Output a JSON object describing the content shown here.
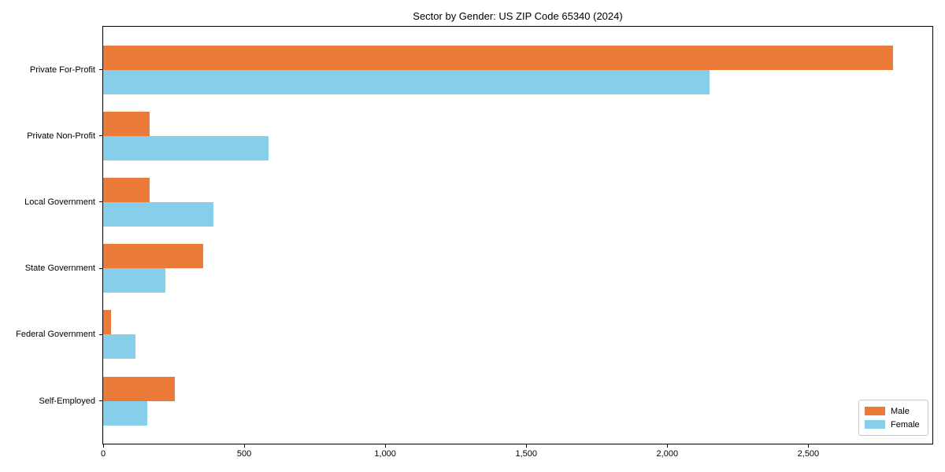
{
  "chart_data": {
    "type": "bar",
    "orientation": "horizontal",
    "title": "Sector by Gender: US ZIP Code 65340 (2024)",
    "categories": [
      "Private For-Profit",
      "Private Non-Profit",
      "Local Government",
      "State Government",
      "Federal Government",
      "Self-Employed"
    ],
    "series": [
      {
        "name": "Male",
        "color": "#e97a38",
        "values": [
          2800,
          165,
          165,
          355,
          28,
          255
        ]
      },
      {
        "name": "Female",
        "color": "#87ceeb",
        "values": [
          2150,
          585,
          390,
          220,
          115,
          155
        ]
      }
    ],
    "xlabel": "",
    "ylabel": "",
    "xlim": [
      0,
      2940
    ],
    "x_ticks": [
      0,
      500,
      1000,
      1500,
      2000,
      2500
    ],
    "x_tick_labels": [
      "0",
      "500",
      "1,000",
      "1,500",
      "2,000",
      "2,500"
    ],
    "legend_position": "lower right",
    "grid": false,
    "frame": "full-box",
    "background_color": "#ffffff",
    "text_color": "#000000"
  }
}
